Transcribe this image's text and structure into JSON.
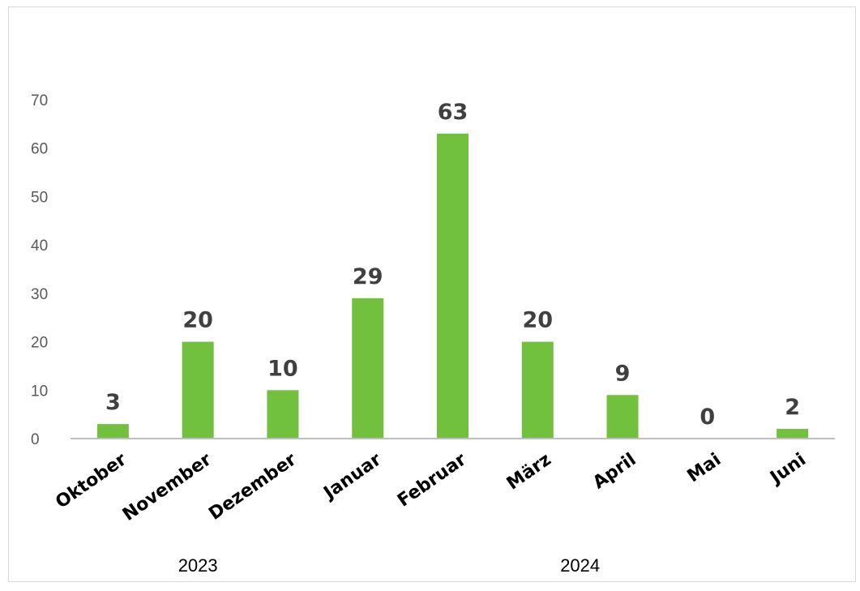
{
  "chart_data": {
    "type": "bar",
    "title": "",
    "xlabel": "",
    "ylabel": "",
    "categories": [
      "Oktober",
      "November",
      "Dezember",
      "Januar",
      "Februar",
      "März",
      "April",
      "Mai",
      "Juni"
    ],
    "values": [
      3,
      20,
      10,
      29,
      63,
      20,
      9,
      0,
      2
    ],
    "year_groups": [
      {
        "label": "2023",
        "categories": [
          "Oktober",
          "November",
          "Dezember"
        ]
      },
      {
        "label": "2024",
        "categories": [
          "Januar",
          "Februar",
          "März",
          "April",
          "Mai",
          "Juni"
        ]
      }
    ],
    "ylim": [
      0,
      70
    ],
    "yticks": [
      0,
      10,
      20,
      30,
      40,
      50,
      60,
      70
    ],
    "grid": false,
    "legend": "none",
    "bar_color": "#72c13e",
    "axis_color": "#bfbfbf"
  }
}
